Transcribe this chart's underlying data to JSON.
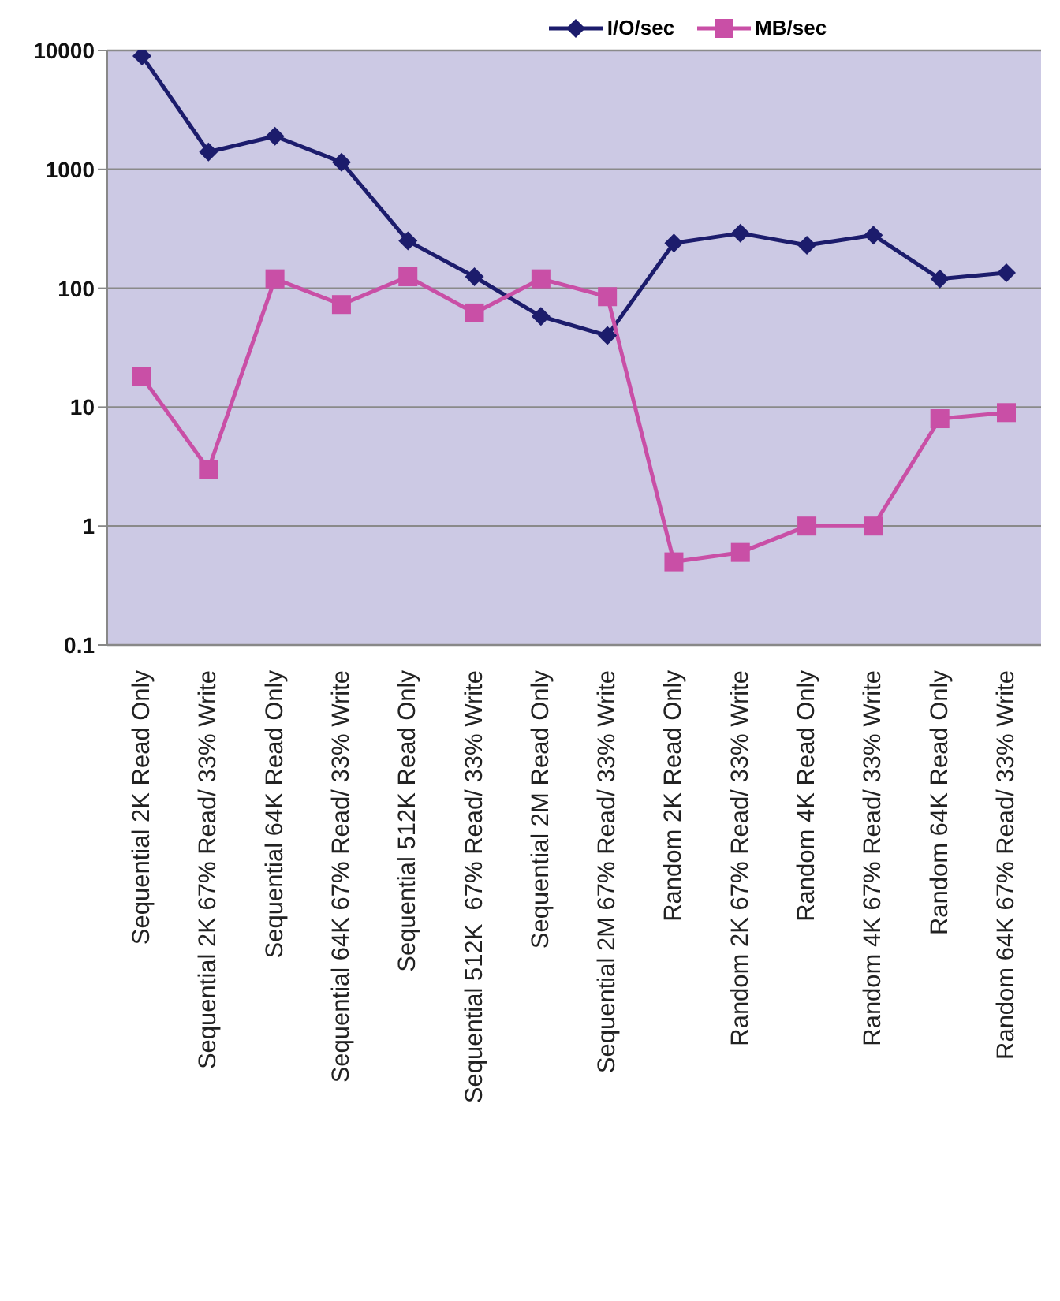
{
  "chart_data": {
    "type": "line",
    "categories": [
      "Sequential 2K Read Only",
      "Sequential 2K 67% Read/ 33% Write",
      "Sequential 64K Read Only",
      "Sequential 64K 67% Read/ 33% Write",
      "Sequential 512K Read Only",
      "Sequential 512K  67% Read/ 33% Write",
      "Sequential 2M Read Only",
      "Sequential 2M 67% Read/ 33% Write",
      "Random 2K Read Only",
      "Random 2K 67% Read/ 33% Write",
      "Random 4K Read Only",
      "Random 4K 67% Read/ 33% Write",
      "Random 64K Read Only",
      "Random 64K 67% Read/ 33% Write"
    ],
    "series": [
      {
        "name": "I/O/sec",
        "color": "#1c1c6c",
        "marker": "diamond",
        "values": [
          9000,
          1400,
          1900,
          1150,
          250,
          125,
          58,
          40,
          240,
          290,
          230,
          280,
          120,
          135
        ]
      },
      {
        "name": "MB/sec",
        "color": "#c94fa6",
        "marker": "square",
        "values": [
          18,
          3,
          120,
          73,
          125,
          62,
          120,
          85,
          0.5,
          0.6,
          1,
          1,
          8,
          9
        ]
      }
    ],
    "log": "y",
    "ylim": [
      0.1,
      10000
    ],
    "yticks": [
      0.1,
      1,
      10,
      100,
      1000,
      10000
    ],
    "grid": "y",
    "legend": "top",
    "line_style": "solid"
  }
}
